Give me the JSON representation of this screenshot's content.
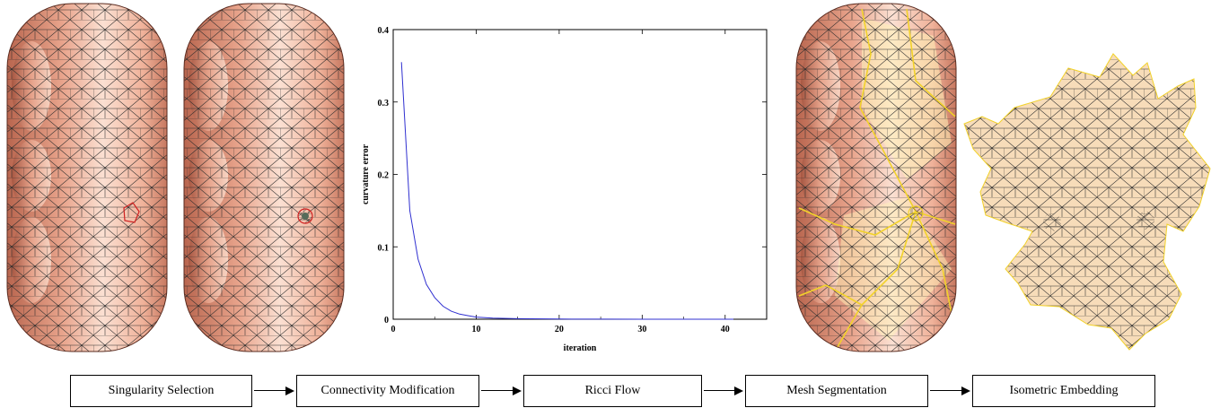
{
  "pipeline": {
    "stages": [
      {
        "label": "Singularity Selection"
      },
      {
        "label": "Connectivity Modification"
      },
      {
        "label": "Ricci Flow"
      },
      {
        "label": "Mesh Segmentation"
      },
      {
        "label": "Isometric Embedding"
      }
    ]
  },
  "chart_data": {
    "type": "line",
    "xlabel": "iteration",
    "ylabel": "curvature error",
    "xlim": [
      0,
      45
    ],
    "ylim": [
      0,
      0.4
    ],
    "x_ticks": [
      "0",
      "10",
      "20",
      "30",
      "40"
    ],
    "y_ticks": [
      "0",
      "0.1",
      "0.2",
      "0.3",
      "0.4"
    ],
    "grid": false,
    "series": [
      {
        "color": "#3030d0",
        "x": [
          1,
          2,
          3,
          4,
          5,
          6,
          7,
          8,
          9,
          10,
          12,
          15,
          20,
          25,
          30,
          35,
          41
        ],
        "y": [
          0.355,
          0.15,
          0.083,
          0.048,
          0.03,
          0.018,
          0.011,
          0.007,
          0.005,
          0.003,
          0.0015,
          0.0007,
          0.0003,
          0.0001,
          5e-05,
          2e-05,
          0.0
        ]
      }
    ]
  },
  "colors": {
    "mesh_fill": "#e8a088",
    "mesh_highlight": "#fbe0d2",
    "wire": "#2b2b2b",
    "singularity": "#d02020",
    "segment_line": "#f2d22a",
    "flat_fill": "#f7dcb9",
    "curve": "#3030d0"
  }
}
